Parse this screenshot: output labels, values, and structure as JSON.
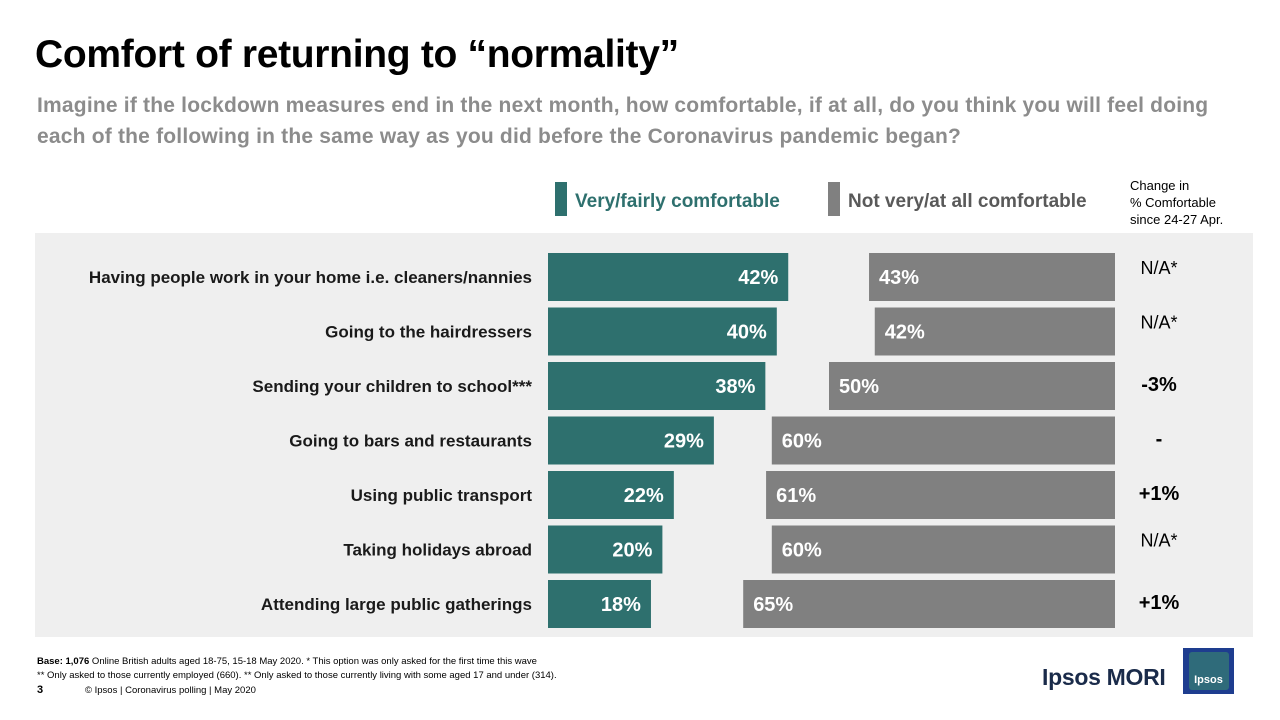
{
  "title": "Comfort of returning to “normality”",
  "question": "Imagine if the lockdown measures end in the next month, how comfortable, if at all, do you think you will feel doing each of the following in the same way as you did before the Coronavirus pandemic began?",
  "legend": {
    "comfortable_label": "Very/fairly  comfortable",
    "not_comfortable_label": "Not very/at all comfortable"
  },
  "change_header": [
    "Change in",
    "% Comfortable",
    "since 24-27 Apr."
  ],
  "colors": {
    "comfortable": "#2e706e",
    "not_comfortable": "#808080",
    "question": "#8c8c8c",
    "panel": "#efefef"
  },
  "chart_data": {
    "type": "bar",
    "orientation": "horizontal",
    "title": "Comfort of returning to “normality”",
    "categories": [
      "Having people work in your home i.e. cleaners/nannies",
      "Going to the hairdressers",
      "Sending your children to school***",
      "Going to bars and restaurants",
      "Using public transport",
      "Taking holidays abroad",
      "Attending large public gatherings"
    ],
    "series": [
      {
        "name": "Very/fairly  comfortable",
        "values": [
          42,
          40,
          38,
          29,
          22,
          20,
          18
        ]
      },
      {
        "name": "Not very/at all comfortable",
        "values": [
          43,
          42,
          50,
          60,
          61,
          60,
          65
        ]
      }
    ],
    "value_suffix": "%",
    "change": [
      "N/A*",
      "N/A*",
      "-3%",
      "-",
      "+1%",
      "N/A*",
      "+1%"
    ],
    "xlim": [
      0,
      100
    ]
  },
  "footer": {
    "base_bold": "Base: 1,076",
    "base_text": " Online British adults aged 18-75, 15-18 May 2020. * This option was only asked for the first time this wave",
    "note": "** Only asked to those currently employed (660). ** Only asked to those currently living with some aged 17 and under (314).",
    "page_number": "3",
    "copyright": "© Ipsos | Coronavirus polling | May 2020"
  },
  "brand": {
    "name": "Ipsos MORI",
    "logo_text": "Ipsos"
  }
}
